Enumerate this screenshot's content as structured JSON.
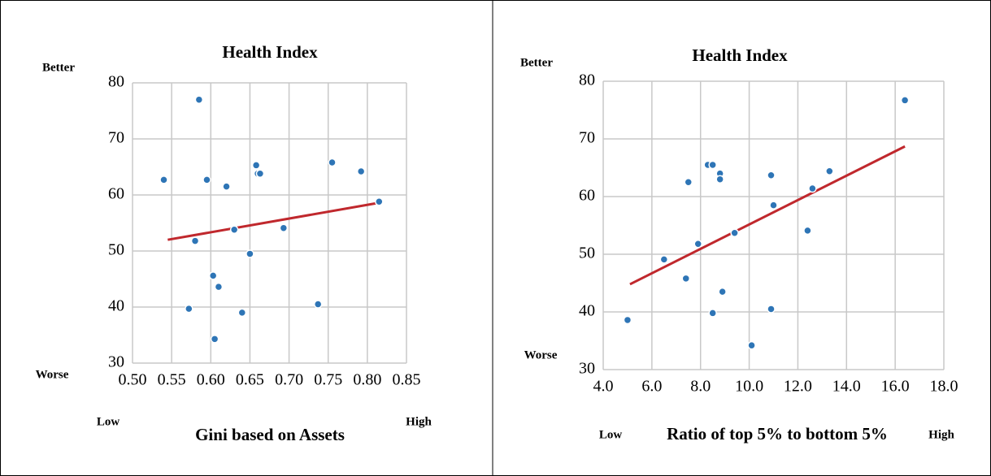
{
  "chart_data": [
    {
      "type": "scatter",
      "title": "Health Index",
      "x_label": "Gini based on Assets",
      "annotations": [
        "Better",
        "Worse",
        "Low",
        "High"
      ],
      "x": [
        0.54,
        0.585,
        0.595,
        0.58,
        0.572,
        0.603,
        0.61,
        0.605,
        0.62,
        0.63,
        0.64,
        0.65,
        0.658,
        0.66,
        0.663,
        0.693,
        0.737,
        0.755,
        0.792,
        0.815
      ],
      "values": [
        62.7,
        77,
        62.7,
        51.8,
        39.7,
        45.6,
        43.6,
        34.3,
        61.5,
        53.8,
        39,
        49.5,
        65.3,
        63.8,
        63.8,
        54.1,
        40.5,
        65.8,
        64.2,
        58.8
      ],
      "color": "#2e75b6",
      "trendline": {
        "x": [
          0.545,
          0.815
        ],
        "y": [
          52,
          58.6
        ],
        "color": "#c0282d"
      },
      "xlim": [
        0.5,
        0.85
      ],
      "xticks": [
        {
          "value": 0.5,
          "label": "0.50"
        },
        {
          "value": 0.55,
          "label": "0.55"
        },
        {
          "value": 0.6,
          "label": "0.60"
        },
        {
          "value": 0.65,
          "label": "0.65"
        },
        {
          "value": 0.7,
          "label": "0.70"
        },
        {
          "value": 0.75,
          "label": "0.75"
        },
        {
          "value": 0.8,
          "label": "0.80"
        },
        {
          "value": 0.85,
          "label": "0.85"
        }
      ],
      "ylim": [
        30,
        80
      ],
      "yticks": [
        30,
        40,
        50,
        60,
        70,
        80
      ],
      "grid": true
    },
    {
      "type": "scatter",
      "title": "Health Index",
      "x_label": "Ratio of top 5% to bottom 5%",
      "annotations": [
        "Better",
        "Worse",
        "Low",
        "High"
      ],
      "x": [
        5.0,
        6.5,
        7.4,
        7.5,
        7.9,
        8.3,
        8.5,
        8.5,
        8.8,
        8.8,
        8.9,
        9.4,
        10.1,
        10.9,
        10.9,
        11.0,
        12.4,
        12.6,
        13.3,
        16.4
      ],
      "values": [
        38.6,
        49.1,
        45.8,
        62.5,
        51.8,
        65.5,
        65.5,
        39.8,
        64,
        63,
        43.5,
        53.7,
        34.2,
        63.7,
        40.5,
        58.5,
        54.1,
        61.4,
        64.4,
        76.7
      ],
      "color": "#2e75b6",
      "trendline": {
        "x": [
          5.1,
          16.4
        ],
        "y": [
          44.8,
          68.7
        ],
        "color": "#c0282d"
      },
      "xlim": [
        4,
        18
      ],
      "xticks": [
        {
          "value": 4,
          "label": "4.0"
        },
        {
          "value": 6,
          "label": "6.0"
        },
        {
          "value": 8,
          "label": "8.0"
        },
        {
          "value": 10,
          "label": "10.0"
        },
        {
          "value": 12,
          "label": "12.0"
        },
        {
          "value": 14,
          "label": "14.0"
        },
        {
          "value": 16,
          "label": "16.0"
        },
        {
          "value": 18,
          "label": "18.0"
        }
      ],
      "ylim": [
        30,
        80
      ],
      "yticks": [
        30,
        40,
        50,
        60,
        70,
        80
      ],
      "grid": true
    }
  ]
}
